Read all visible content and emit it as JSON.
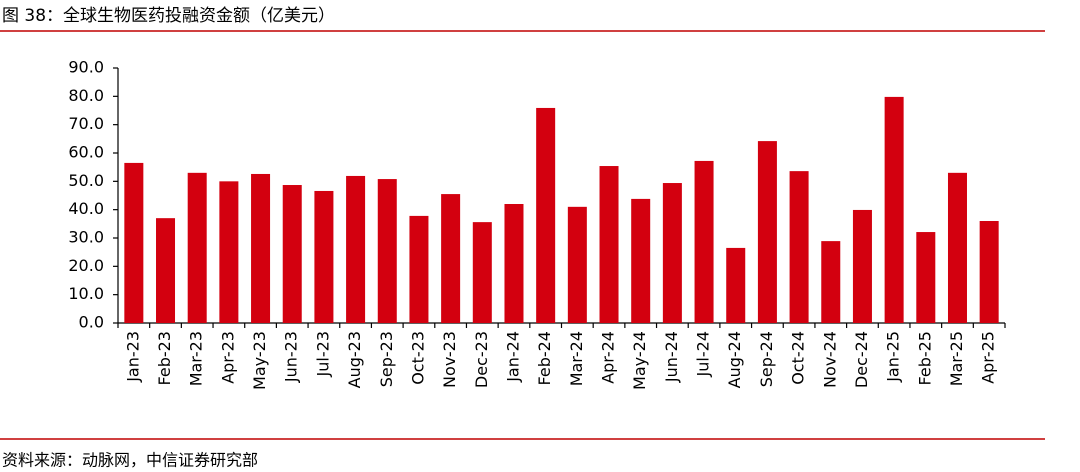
{
  "chart_data": {
    "type": "bar",
    "title": "图 38：全球生物医药投融资金额（亿美元）",
    "source": "资料来源：动脉网，中信证券研究部",
    "categories": [
      "Jan-23",
      "Feb-23",
      "Mar-23",
      "Apr-23",
      "May-23",
      "Jun-23",
      "Jul-23",
      "Aug-23",
      "Sep-23",
      "Oct-23",
      "Nov-23",
      "Dec-23",
      "Jan-24",
      "Feb-24",
      "Mar-24",
      "Apr-24",
      "May-24",
      "Jun-24",
      "Jul-24",
      "Aug-24",
      "Sep-24",
      "Oct-24",
      "Nov-24",
      "Dec-24",
      "Jan-25",
      "Feb-25",
      "Mar-25",
      "Apr-25"
    ],
    "values": [
      56.5,
      37,
      53,
      50,
      52.6,
      48.7,
      46.6,
      51.9,
      50.8,
      37.8,
      45.5,
      35.6,
      42,
      75.9,
      41,
      55.4,
      43.8,
      49.4,
      57.2,
      26.5,
      64.2,
      53.6,
      28.9,
      39.9,
      79.8,
      32.1,
      53,
      36
    ],
    "color": "#d3000f",
    "ylim": [
      0,
      90
    ],
    "yticks": [
      {
        "value": 0,
        "label": "0.0"
      },
      {
        "value": 10,
        "label": "10.0"
      },
      {
        "value": 20,
        "label": "20.0"
      },
      {
        "value": 30,
        "label": "30.0"
      },
      {
        "value": 40,
        "label": "40.0"
      },
      {
        "value": 50,
        "label": "50.0"
      },
      {
        "value": 60,
        "label": "60.0"
      },
      {
        "value": 70,
        "label": "70.0"
      },
      {
        "value": 80,
        "label": "80.0"
      },
      {
        "value": 90,
        "label": "90.0"
      }
    ],
    "grid": false
  }
}
